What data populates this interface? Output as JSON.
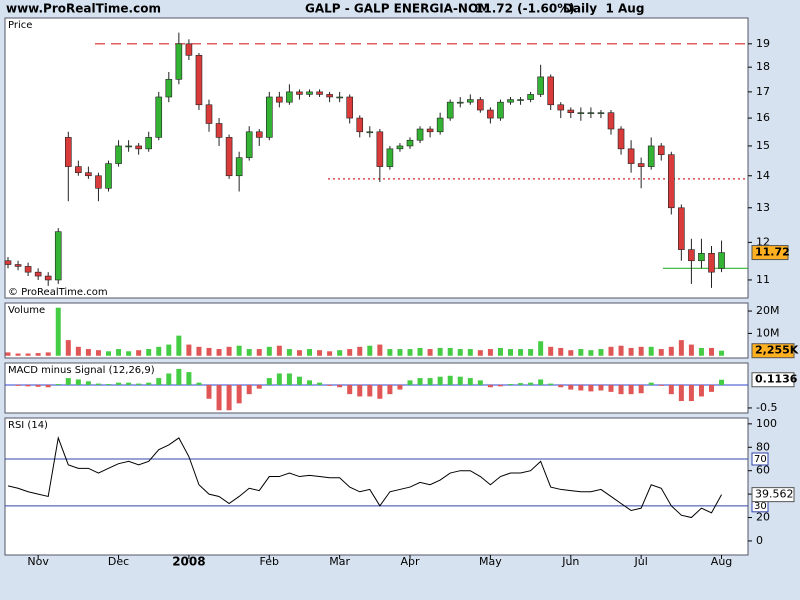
{
  "chart_data": [
    {
      "type": "candlestick",
      "site": "www.ProRealTime.com",
      "name": "GALP - GALP ENERGIA-NOM",
      "quote": "11.72 (-1.60%)",
      "period": "Daily  1 Aug",
      "title": "Price",
      "copyright": "© ProRealTime.com",
      "log_scale": true,
      "ylim": [
        10.55,
        20.17
      ],
      "yticks": [
        11,
        12,
        13,
        14,
        15,
        16,
        17,
        18,
        19
      ],
      "up_color": "#33b233",
      "down_color": "#d93a3a",
      "box_color": "#ffb020",
      "open": [
        11.5,
        11.4,
        11.35,
        11.2,
        11.1,
        11.0,
        15.3,
        14.3,
        14.1,
        14.0,
        13.6,
        14.4,
        15.0,
        15.0,
        14.9,
        15.3,
        16.8,
        17.5,
        19.0,
        18.5,
        16.5,
        15.8,
        15.3,
        14.0,
        14.6,
        15.5,
        15.3,
        16.8,
        16.6,
        17.0,
        16.9,
        17.0,
        16.9,
        16.8,
        16.8,
        16.0,
        15.5,
        15.5,
        14.3,
        14.9,
        15.0,
        15.2,
        15.6,
        15.5,
        16.0,
        16.6,
        16.6,
        16.7,
        16.3,
        16.0,
        16.6,
        16.7,
        16.7,
        16.9,
        17.6,
        16.5,
        16.3,
        16.2,
        16.2,
        16.2,
        16.2,
        15.6,
        14.9,
        14.4,
        14.3,
        15.0,
        14.7,
        13.0,
        11.8,
        11.5,
        11.7,
        11.3
      ],
      "high": [
        11.6,
        11.5,
        11.45,
        11.3,
        11.2,
        12.4,
        15.5,
        14.5,
        14.3,
        14.1,
        14.5,
        15.2,
        15.2,
        15.1,
        15.5,
        17.0,
        17.8,
        19.5,
        19.2,
        18.6,
        16.7,
        16.0,
        15.4,
        14.8,
        15.7,
        15.6,
        17.0,
        17.0,
        17.3,
        17.1,
        17.1,
        17.1,
        17.0,
        17.0,
        16.9,
        16.1,
        15.7,
        15.6,
        15.0,
        15.1,
        15.3,
        15.7,
        15.7,
        16.2,
        16.7,
        16.8,
        16.9,
        16.8,
        16.4,
        16.7,
        16.8,
        16.8,
        17.0,
        18.1,
        17.7,
        16.6,
        16.4,
        16.4,
        16.4,
        16.3,
        16.3,
        15.7,
        15.2,
        14.6,
        15.3,
        15.1,
        14.8,
        13.1,
        12.1,
        12.1,
        11.9,
        12.05
      ],
      "low": [
        11.3,
        11.25,
        11.1,
        11.0,
        10.85,
        10.9,
        13.2,
        14.0,
        13.9,
        13.2,
        13.5,
        14.3,
        14.8,
        14.7,
        14.8,
        15.2,
        16.6,
        17.3,
        18.3,
        16.3,
        15.5,
        15.0,
        13.9,
        13.5,
        14.5,
        15.0,
        15.2,
        16.4,
        16.5,
        16.7,
        16.8,
        16.8,
        16.6,
        16.6,
        15.8,
        15.3,
        15.3,
        13.8,
        14.2,
        14.8,
        14.9,
        15.1,
        15.3,
        15.4,
        15.9,
        16.4,
        16.5,
        16.2,
        15.8,
        15.9,
        16.5,
        16.5,
        16.6,
        16.8,
        16.3,
        16.0,
        16.0,
        15.9,
        16.0,
        16.0,
        15.4,
        14.7,
        14.1,
        13.6,
        14.2,
        14.5,
        12.8,
        11.5,
        10.9,
        11.3,
        10.8,
        11.2
      ],
      "close": [
        11.4,
        11.35,
        11.2,
        11.1,
        11.0,
        12.3,
        14.3,
        14.1,
        14.0,
        13.6,
        14.4,
        15.0,
        15.0,
        14.9,
        15.3,
        16.8,
        17.5,
        19.0,
        18.5,
        16.5,
        15.8,
        15.3,
        14.0,
        14.6,
        15.5,
        15.3,
        16.8,
        16.6,
        17.0,
        16.9,
        17.0,
        16.9,
        16.8,
        16.8,
        16.0,
        15.5,
        15.5,
        14.3,
        14.9,
        15.0,
        15.2,
        15.6,
        15.5,
        16.0,
        16.6,
        16.6,
        16.7,
        16.3,
        16.0,
        16.6,
        16.7,
        16.7,
        16.9,
        17.6,
        16.5,
        16.3,
        16.2,
        16.2,
        16.2,
        16.2,
        15.6,
        14.9,
        14.4,
        14.3,
        15.0,
        14.7,
        13.0,
        11.8,
        11.5,
        11.7,
        11.2,
        11.72
      ],
      "levels": [
        {
          "value": 19,
          "color": "#d62728",
          "dash": "10 6"
        },
        {
          "value": 13.9,
          "color": "#d62728",
          "dash": "2 3"
        },
        {
          "value": 11.3,
          "color": "#33b233",
          "dash": "none"
        }
      ]
    },
    {
      "type": "bar",
      "title": "Volume",
      "color_rule": "price",
      "up_color": "#44cc44",
      "down_color": "#e05555",
      "box_color": "#ffb020",
      "ylim": [
        -1000000,
        23600000
      ],
      "yticks": [
        {
          "value": 10000000,
          "label": "10M"
        },
        {
          "value": 20000000,
          "label": "20M"
        }
      ],
      "last_label": "2,255K",
      "values": [
        1500000,
        1000000,
        1000000,
        1200000,
        1500000,
        21500000,
        7000000,
        4000000,
        3000000,
        2500000,
        2000000,
        3000000,
        2000000,
        2500000,
        3000000,
        4000000,
        5000000,
        9000000,
        5000000,
        4000000,
        3500000,
        3000000,
        4000000,
        4500000,
        3000000,
        3000000,
        4000000,
        4500000,
        3000000,
        2500000,
        3000000,
        2500000,
        2000000,
        2500000,
        3000000,
        4000000,
        4500000,
        5000000,
        3000000,
        3000000,
        3000000,
        3500000,
        3000000,
        3500000,
        3500000,
        3000000,
        3000000,
        2500000,
        3000000,
        3500000,
        3000000,
        3000000,
        3000000,
        6500000,
        4000000,
        3500000,
        2500000,
        3000000,
        2500000,
        3000000,
        4000000,
        4500000,
        3500000,
        4000000,
        4000000,
        3000000,
        4000000,
        7000000,
        5000000,
        3500000,
        3500000,
        2255000
      ]
    },
    {
      "type": "bar",
      "title": "MACD minus Signal (12,26,9)",
      "color_rule": "sign",
      "up_color": "#44cc44",
      "down_color": "#e05555",
      "box_color": "#ffffff",
      "box_text_color": "#119911",
      "zero_line": true,
      "ylim": [
        -0.61,
        0.478
      ],
      "yticks": [
        -0.5
      ],
      "values": [
        0,
        -0.02,
        -0.03,
        -0.04,
        -0.05,
        0.02,
        0.15,
        0.12,
        0.08,
        0.03,
        0.02,
        0.05,
        0.05,
        0.03,
        0.05,
        0.15,
        0.25,
        0.35,
        0.28,
        0.05,
        -0.3,
        -0.55,
        -0.55,
        -0.4,
        -0.2,
        -0.08,
        0.15,
        0.25,
        0.25,
        0.18,
        0.1,
        0.05,
        -0.02,
        -0.05,
        -0.2,
        -0.25,
        -0.25,
        -0.3,
        -0.2,
        -0.1,
        0.1,
        0.15,
        0.15,
        0.18,
        0.2,
        0.18,
        0.15,
        0.1,
        -0.05,
        -0.03,
        0.02,
        0.04,
        0.05,
        0.12,
        0.03,
        -0.05,
        -0.1,
        -0.12,
        -0.14,
        -0.12,
        -0.15,
        -0.2,
        -0.2,
        -0.18,
        0.05,
        -0.02,
        -0.2,
        -0.35,
        -0.35,
        -0.25,
        -0.15,
        0.1136
      ]
    },
    {
      "type": "line",
      "title": "RSI (14)",
      "color": "#000000",
      "box_color": "#ffffff",
      "ylim": [
        -12,
        105
      ],
      "yticks": [
        0,
        20,
        40,
        60,
        80,
        100
      ],
      "ref_lines": [
        70,
        30
      ],
      "ref_color": "#3344aa",
      "categories": [
        null,
        null,
        null,
        "Nov",
        null,
        null,
        null,
        null,
        null,
        null,
        null,
        "Dec",
        null,
        null,
        null,
        null,
        null,
        null,
        "2008",
        null,
        null,
        null,
        null,
        null,
        null,
        null,
        "Feb",
        null,
        null,
        null,
        null,
        null,
        null,
        "Mar",
        null,
        null,
        null,
        null,
        null,
        null,
        "Apr",
        null,
        null,
        null,
        null,
        null,
        null,
        null,
        "May",
        null,
        null,
        null,
        null,
        null,
        null,
        null,
        "Jun",
        null,
        null,
        null,
        null,
        null,
        null,
        "Jul",
        null,
        null,
        null,
        null,
        null,
        null,
        null,
        "Aug"
      ],
      "values": [
        47,
        45,
        42,
        40,
        38,
        88,
        65,
        62,
        62,
        58,
        62,
        66,
        68,
        65,
        68,
        78,
        82,
        88,
        72,
        48,
        40,
        38,
        32,
        38,
        45,
        43,
        55,
        55,
        58,
        55,
        56,
        55,
        54,
        54,
        46,
        42,
        44,
        30,
        42,
        44,
        46,
        50,
        48,
        52,
        58,
        60,
        60,
        55,
        48,
        55,
        58,
        58,
        60,
        68,
        46,
        44,
        43,
        42,
        42,
        44,
        38,
        32,
        26,
        28,
        48,
        45,
        30,
        22,
        20,
        28,
        24,
        39.562
      ]
    }
  ]
}
